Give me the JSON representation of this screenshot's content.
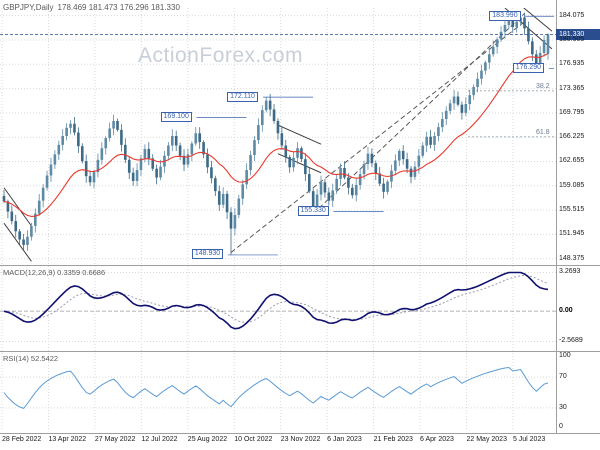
{
  "header": {
    "symbol_title": "GBPJPY,Daily",
    "ohlc_values": "178.469 181.473 176.296 181.330"
  },
  "watermark": "ActionForex.com",
  "colors": {
    "candle_up": "#5d8aa4",
    "candle_down": "#3c6a87",
    "ma_line": "#e8392e",
    "macd_line": "#10106e",
    "macd_signal": "#9b9bb0",
    "rsi_line": "#5b9bd5",
    "callout": "#3a62b0",
    "price_tag_bg": "#2a4d8f",
    "grid": "#d9d9d9",
    "watermark": "#c9cfd8"
  },
  "chart_data": {
    "type": "candlestick",
    "symbol": "GBPJPY",
    "timeframe": "Daily",
    "title": "GBPJPY,Daily 178.469 181.473 176.296 181.330",
    "current_bar": {
      "open": "178.469",
      "high": "181.473",
      "low": "176.296",
      "close": "181.330"
    },
    "price_range": [
      147.6,
      185.2
    ],
    "y_axis": {
      "tick_labels": [
        "184.075",
        "180.505",
        "176.935",
        "173.365",
        "169.795",
        "166.225",
        "162.655",
        "159.085",
        "155.515",
        "151.945",
        "148.375"
      ],
      "current_price": "181.330"
    },
    "x_axis": {
      "tick_labels": [
        "28 Feb 2022",
        "13 Apr 2022",
        "27 May 2022",
        "12 Jul 2022",
        "25 Aug 2022",
        "10 Oct 2022",
        "23 Nov 2022",
        "6 Jan 2023",
        "21 Feb 2023",
        "6 Apr 2023",
        "22 May 2023",
        "5 Jul 2023"
      ]
    },
    "series": {
      "closes": [
        156.8,
        155.3,
        153.9,
        152.4,
        151.2,
        150.4,
        151.6,
        153.2,
        155.0,
        156.9,
        158.8,
        160.6,
        162.2,
        163.7,
        165.1,
        166.4,
        167.6,
        168.2,
        166.9,
        164.9,
        162.7,
        160.5,
        159.6,
        161.1,
        162.9,
        164.6,
        166.1,
        167.5,
        168.6,
        167.3,
        165.1,
        162.9,
        161.0,
        159.8,
        161.4,
        163.1,
        164.5,
        163.1,
        161.6,
        160.3,
        161.9,
        163.5,
        165.0,
        166.4,
        165.0,
        163.5,
        162.2,
        163.7,
        165.3,
        166.8,
        165.5,
        163.7,
        161.8,
        160.2,
        158.3,
        156.3,
        157.9,
        155.2,
        152.8,
        154.8,
        157.2,
        159.3,
        161.4,
        163.6,
        165.8,
        168.0,
        170.2,
        171.6,
        170.3,
        168.6,
        166.8,
        165.0,
        163.3,
        161.8,
        163.2,
        164.6,
        163.0,
        160.8,
        158.3,
        156.1,
        157.8,
        159.6,
        158.1,
        156.9,
        158.4,
        160.1,
        161.7,
        160.3,
        158.8,
        157.7,
        159.2,
        160.8,
        162.3,
        163.8,
        162.4,
        160.9,
        159.4,
        158.2,
        159.7,
        161.3,
        162.8,
        164.2,
        163.0,
        161.6,
        160.4,
        161.9,
        163.5,
        165.0,
        166.3,
        165.1,
        166.4,
        167.7,
        168.9,
        170.1,
        171.2,
        172.2,
        171.0,
        169.8,
        171.1,
        172.4,
        173.6,
        174.8,
        176.0,
        177.2,
        178.4,
        179.5,
        180.6,
        181.7,
        182.7,
        183.3,
        182.4,
        183.2,
        183.8,
        182.2,
        180.3,
        178.4,
        176.8,
        178.6,
        180.5,
        181.33
      ],
      "overrides": {
        "58": {
          "low": 148.93
        },
        "67": {
          "high": 172.11
        },
        "79": {
          "low": 155.33
        },
        "132": {
          "high": 183.99
        },
        "136": {
          "low": 176.29
        },
        "139": {
          "open": 178.47,
          "high": 181.473,
          "low": 177.6
        }
      }
    },
    "ma": {
      "type": "ema",
      "period": 20,
      "color": "#e8392e"
    },
    "macd": {
      "title": "MACD(12,26,9) 0.3359 0.6686",
      "fast": 12,
      "slow": 26,
      "signal": 9,
      "value": "0.3359",
      "signal_value": "0.6686",
      "axis": {
        "top": "3.2693",
        "zero": "0.00",
        "bottom": "-2.5689"
      },
      "display_range": [
        -3.2,
        3.65
      ]
    },
    "rsi": {
      "title": "RSI(14) 52.5422",
      "period": 14,
      "value": "52.5422",
      "axis": [
        "100",
        "70",
        "30",
        "0"
      ],
      "levels": [
        70,
        30
      ]
    },
    "callouts": [
      {
        "label": "183.990",
        "price": 183.99,
        "bar": 124
      },
      {
        "label": "176.290",
        "price": 176.29,
        "bar": 130
      },
      {
        "label": "172.110",
        "price": 172.11,
        "bar": 57
      },
      {
        "label": "169.100",
        "price": 169.1,
        "bar": 40
      },
      {
        "label": "155.330",
        "price": 155.33,
        "bar": 75
      },
      {
        "label": "148.930",
        "price": 148.93,
        "bar": 48
      }
    ],
    "fib_levels": [
      {
        "label": "38.2",
        "price": 173.04
      },
      {
        "label": "61.8",
        "price": 166.28
      }
    ],
    "annotations": {
      "channels": [
        {
          "from": [
            0,
            158.8
          ],
          "to": [
            7,
            153.2
          ]
        },
        {
          "from": [
            0,
            153.6
          ],
          "to": [
            7,
            148.0
          ]
        },
        {
          "from": [
            70,
            168.0
          ],
          "to": [
            81,
            165.2
          ]
        },
        {
          "from": [
            70,
            163.8
          ],
          "to": [
            81,
            161.0
          ]
        },
        {
          "from": [
            128,
            185.2
          ],
          "to": [
            140,
            179.2
          ]
        },
        {
          "from": [
            132,
            185.6
          ],
          "to": [
            140,
            181.8
          ]
        }
      ],
      "trendlines": [
        {
          "from": [
            79,
            155.0
          ],
          "to": [
            133,
            184.4
          ]
        },
        {
          "from": [
            58,
            149.3
          ],
          "to": [
            133,
            183.2
          ]
        }
      ]
    }
  }
}
